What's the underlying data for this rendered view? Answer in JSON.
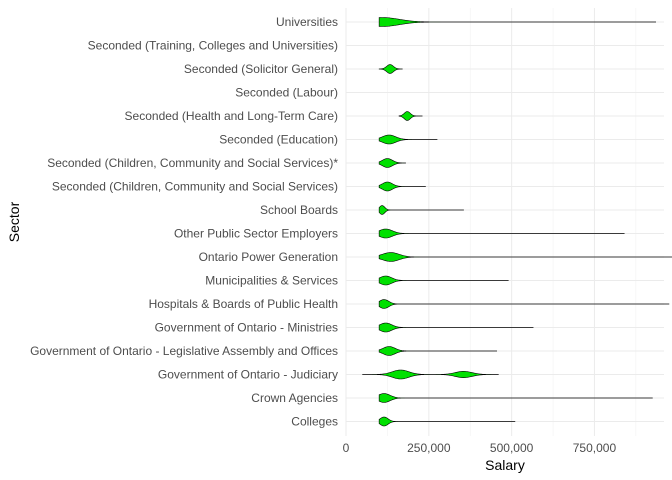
{
  "chart_data": {
    "type": "violin",
    "orientation": "horizontal",
    "xlabel": "Salary",
    "ylabel": "Sector",
    "xlim": [
      0,
      960000
    ],
    "x_ticks": [
      0,
      250000,
      500000,
      750000
    ],
    "x_tick_labels": [
      "0",
      "250,000",
      "500,000",
      "750,000"
    ],
    "grid": true,
    "fill_color": "#00E000",
    "outline_color": "#000000",
    "categories": [
      "Universities",
      "Seconded (Training, Colleges and Universities)",
      "Seconded (Solicitor General)",
      "Seconded (Labour)",
      "Seconded (Health and Long-Term Care)",
      "Seconded (Education)",
      "Seconded (Children, Community and Social Services)*",
      "Seconded (Children, Community and Social Services)",
      "School Boards",
      "Other Public Sector Employers",
      "Ontario Power Generation",
      "Municipalities & Services",
      "Hospitals & Boards of Public Health",
      "Government of Ontario - Ministries",
      "Government of Ontario - Legislative Assembly and Offices",
      "Government of Ontario - Judiciary",
      "Crown Agencies",
      "Colleges"
    ],
    "series": [
      {
        "min": 100000,
        "max": 935000,
        "peak": 110000,
        "spread": 50000
      },
      null,
      {
        "min": 100000,
        "max": 170000,
        "peak": 133000,
        "spread": 10000
      },
      null,
      {
        "min": 160000,
        "max": 230000,
        "peak": 185000,
        "spread": 9000
      },
      {
        "min": 100000,
        "max": 275000,
        "peak": 130000,
        "spread": 20000
      },
      {
        "min": 100000,
        "max": 180000,
        "peak": 125000,
        "spread": 15000
      },
      {
        "min": 100000,
        "max": 240000,
        "peak": 125000,
        "spread": 15000
      },
      {
        "min": 100000,
        "max": 355000,
        "peak": 109000,
        "spread": 8000
      },
      {
        "min": 100000,
        "max": 840000,
        "peak": 120000,
        "spread": 20000
      },
      {
        "min": 100000,
        "max": 1080000,
        "peak": 135000,
        "spread": 25000
      },
      {
        "min": 100000,
        "max": 490000,
        "peak": 120000,
        "spread": 18000
      },
      {
        "min": 100000,
        "max": 975000,
        "peak": 115000,
        "spread": 14000
      },
      {
        "min": 100000,
        "max": 565000,
        "peak": 120000,
        "spread": 18000
      },
      {
        "min": 100000,
        "max": 455000,
        "peak": 130000,
        "spread": 18000
      },
      {
        "min": 50000,
        "max": 460000,
        "peak": 165000,
        "spread": 25000,
        "peak2": 355000,
        "spread2": 25000
      },
      {
        "min": 100000,
        "max": 925000,
        "peak": 115000,
        "spread": 18000
      },
      {
        "min": 100000,
        "max": 510000,
        "peak": 115000,
        "spread": 12000
      }
    ]
  }
}
